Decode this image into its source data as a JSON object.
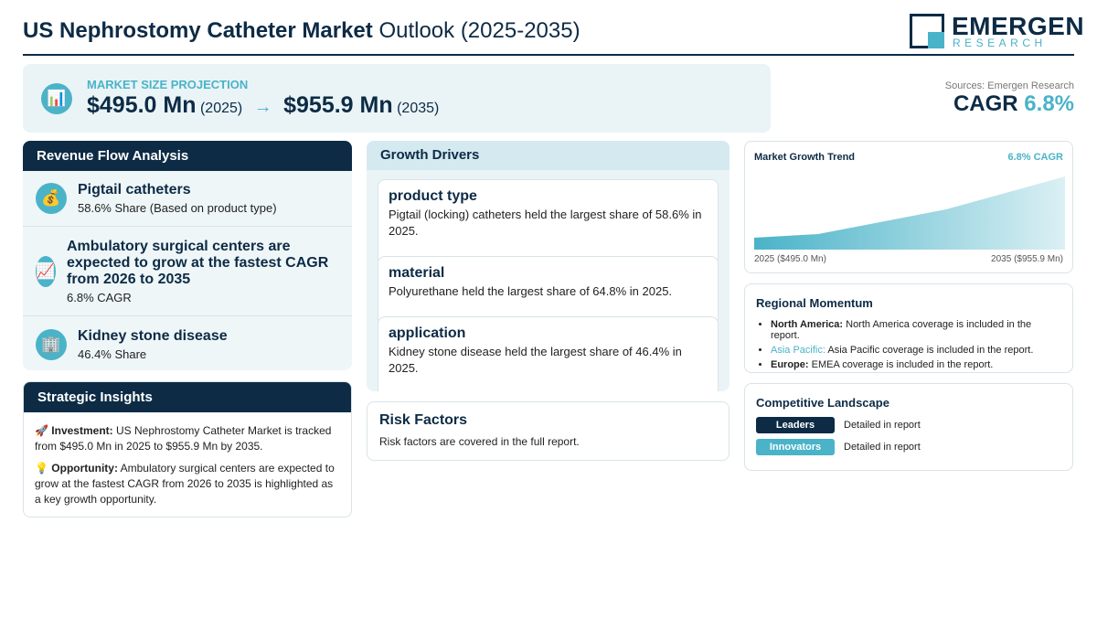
{
  "header": {
    "title_bold": "US Nephrostomy Catheter Market",
    "title_rest": "Outlook (2025-2035)",
    "logo_top": "EMERGEN",
    "logo_bottom": "RESEARCH"
  },
  "projection": {
    "icon": "📊",
    "label": "MARKET SIZE PROJECTION",
    "start_value": "$495.0 Mn",
    "start_year": "(2025)",
    "arrow": "→",
    "end_value": "$955.9 Mn",
    "end_year": "(2035)"
  },
  "cagr": {
    "source": "Sources: Emergen Research",
    "label": "CAGR",
    "value": "6.8%"
  },
  "revenue_flow": {
    "title": "Revenue Flow Analysis",
    "items": [
      {
        "icon": "💰",
        "title": "Pigtail catheters",
        "detail": "58.6% Share (Based on product type)"
      },
      {
        "icon": "📈",
        "title": "Ambulatory surgical centers are expected to grow at the fastest CAGR from 2026 to 2035",
        "detail": "6.8% CAGR"
      },
      {
        "icon": "🏢",
        "title": "Kidney stone disease",
        "detail": "46.4% Share"
      }
    ]
  },
  "strategic_insights": {
    "title": "Strategic Insights",
    "items": [
      {
        "icon": "🚀",
        "label": "Investment:",
        "text": "US Nephrostomy Catheter Market is tracked from $495.0 Mn in 2025 to $955.9 Mn by 2035."
      },
      {
        "icon": "💡",
        "label": "Opportunity:",
        "text": "Ambulatory surgical centers are expected to grow at the fastest CAGR from 2026 to 2035 is highlighted as a key growth opportunity."
      }
    ]
  },
  "growth_drivers": {
    "title": "Growth Drivers",
    "items": [
      {
        "title": "product type",
        "text": "Pigtail (locking) catheters held the largest share of 58.6% in 2025."
      },
      {
        "title": "material",
        "text": "Polyurethane held the largest share of 64.8% in 2025."
      },
      {
        "title": "application",
        "text": "Kidney stone disease held the largest share of 46.4% in 2025."
      }
    ]
  },
  "risk_factors": {
    "title": "Risk Factors",
    "text": "Risk factors are covered in the full report."
  },
  "trend": {
    "title": "Market Growth Trend",
    "cagr": "6.8% CAGR",
    "start_label": "2025 ($495.0 Mn)",
    "end_label": "2035 ($955.9 Mn)"
  },
  "regional": {
    "title": "Regional Momentum",
    "items": [
      {
        "region": "North America:",
        "text": "North America coverage is included in the report."
      },
      {
        "region": "Asia Pacific:",
        "text": "Asia Pacific coverage is included in the report."
      },
      {
        "region": "Europe:",
        "text": "EMEA coverage is included in the report."
      }
    ]
  },
  "competitive": {
    "title": "Competitive Landscape",
    "items": [
      {
        "badge": "Leaders",
        "text": "Detailed in report"
      },
      {
        "badge": "Innovators",
        "text": "Detailed in report"
      }
    ]
  }
}
